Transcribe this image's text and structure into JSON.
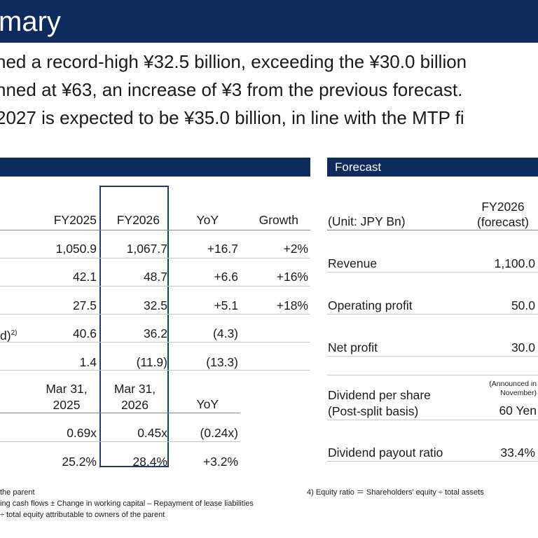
{
  "title": "mary",
  "bullets": [
    "hed a record-high ¥32.5 billion, exceeding the ¥30.0 billion",
    "nned at ¥63, an increase of ¥3 from the previous forecast.",
    "2027 is expected to be ¥35.0 billion, in line with the MTP fi"
  ],
  "results": {
    "headers": [
      "FY2025",
      "FY2026",
      "YoY",
      "Growth"
    ],
    "rows": [
      {
        "label": "",
        "fy2025": "1,050.9",
        "fy2026": "1,067.7",
        "yoy": "+16.7",
        "growth": "+2%"
      },
      {
        "label": "",
        "fy2025": "42.1",
        "fy2026": "48.7",
        "yoy": "+6.6",
        "growth": "+16%"
      },
      {
        "label": "",
        "fy2025": "27.5",
        "fy2026": "32.5",
        "yoy": "+5.1",
        "growth": "+18%"
      },
      {
        "label": "d)",
        "footnote": "2)",
        "fy2025": "40.6",
        "fy2026": "36.2",
        "yoy": "(4.3)",
        "growth": ""
      },
      {
        "label": "",
        "fy2025": "1.4",
        "fy2026": "(11.9)",
        "yoy": "(13.3)",
        "growth": ""
      }
    ],
    "bs_headers": {
      "col1_line1": "Mar 31,",
      "col1_line2": "2025",
      "col2_line1": "Mar 31,",
      "col2_line2": "2026",
      "yoy": "YoY"
    },
    "bs_rows": [
      {
        "v2025": "0.69x",
        "v2026": "0.45x",
        "yoy": "(0.24x)"
      },
      {
        "v2025": "25.2%",
        "v2026": "28.4%",
        "yoy": "+3.2%"
      }
    ]
  },
  "forecast": {
    "title": "Forecast",
    "unit_label": "(Unit: JPY Bn)",
    "col_line1": "FY2026",
    "col_line2": "(forecast)",
    "rows": [
      {
        "label": "Revenue",
        "value": "1,100.0"
      },
      {
        "label": "Operating profit",
        "value": "50.0"
      },
      {
        "label": "Net profit",
        "value": "30.0"
      }
    ],
    "dividend": {
      "label_line1": "Dividend per share",
      "label_line2": "(Post-split basis)",
      "note_line1": "(Announced in",
      "note_line2": "November)",
      "value": "60 Yen"
    },
    "payout": {
      "label": "Dividend payout ratio",
      "value": "33.4%"
    }
  },
  "footnotes": {
    "left": [
      "the parent",
      "ing cash flows ± Change in working capital – Repayment of lease liabilities",
      "÷ total equity attributable to owners of the parent"
    ],
    "right": "4) Equity ratio ＝ Shareholders' equity ÷ total assets"
  }
}
